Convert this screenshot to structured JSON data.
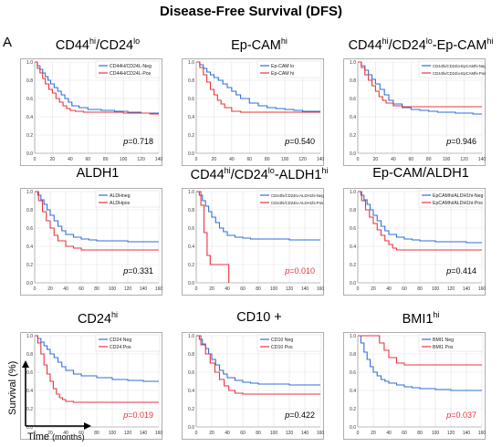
{
  "title": "Disease-Free Survival (DFS)",
  "panel_letter": "A",
  "y_axis_label": "Survival (%)",
  "x_axis_label": "Time",
  "x_axis_unit": "(months)",
  "colors": {
    "neg": "#2e6fd8",
    "pos": "#e8343d",
    "sig": "#e8343d",
    "frame": "#9a9a9a",
    "grid": "#e2e2e2"
  },
  "panels": [
    {
      "title_parts": [
        [
          "CD44",
          "hi",
          "/CD24",
          "lo"
        ]
      ],
      "title": "CD44hi/CD24lo"
    },
    {
      "title": "Ep-CAMhi"
    },
    {
      "title": "CD44hi/CD24lo-Ep-CAMhi"
    },
    {
      "title": "ALDH1"
    },
    {
      "title": "CD44hi/CD24lo-ALDH1hi"
    },
    {
      "title": "Ep-CAM/ALDH1"
    },
    {
      "title": "CD24hi"
    },
    {
      "title": "CD10 +"
    },
    {
      "title": "BMI1hi"
    }
  ],
  "chart_data": [
    {
      "type": "line",
      "title": "CD44hi/CD24lo",
      "xlim": [
        0,
        140
      ],
      "ylim": [
        0,
        1
      ],
      "xticks": [
        0,
        20,
        40,
        60,
        80,
        100,
        120,
        140
      ],
      "yticks": [
        0,
        0.2,
        0.4,
        0.6,
        0.8,
        1.0
      ],
      "p_value": "0.718",
      "significant": false,
      "legend": "top-right",
      "series": [
        {
          "name": "CD44H/CD24L-Neg",
          "x": [
            0,
            3,
            6,
            9,
            12,
            15,
            18,
            22,
            26,
            30,
            34,
            38,
            42,
            50,
            60,
            75,
            90,
            105,
            120,
            130,
            140
          ],
          "values": [
            1.0,
            0.96,
            0.92,
            0.88,
            0.84,
            0.8,
            0.76,
            0.72,
            0.68,
            0.64,
            0.6,
            0.56,
            0.52,
            0.5,
            0.48,
            0.47,
            0.46,
            0.45,
            0.44,
            0.44,
            0.44
          ]
        },
        {
          "name": "CD44H/CD24L-Pos",
          "x": [
            0,
            3,
            6,
            9,
            12,
            16,
            20,
            24,
            28,
            32,
            36,
            40,
            46,
            55,
            70,
            85,
            100,
            115,
            130,
            140
          ],
          "values": [
            1.0,
            0.93,
            0.88,
            0.82,
            0.76,
            0.7,
            0.66,
            0.6,
            0.56,
            0.52,
            0.49,
            0.47,
            0.46,
            0.45,
            0.45,
            0.45,
            0.44,
            0.44,
            0.43,
            0.43
          ]
        }
      ]
    },
    {
      "type": "line",
      "title": "Ep-CAMhi",
      "xlim": [
        0,
        140
      ],
      "ylim": [
        0,
        1
      ],
      "xticks": [
        0,
        20,
        40,
        60,
        80,
        100,
        120,
        140
      ],
      "yticks": [
        0,
        0.2,
        0.4,
        0.6,
        0.8,
        1.0
      ],
      "p_value": "0.540",
      "significant": false,
      "legend": "top-right",
      "series": [
        {
          "name": "Ep-CAM lo",
          "x": [
            0,
            4,
            8,
            12,
            16,
            20,
            25,
            30,
            35,
            40,
            45,
            50,
            60,
            70,
            80,
            90,
            100,
            110,
            120,
            130,
            140
          ],
          "values": [
            1.0,
            0.97,
            0.93,
            0.89,
            0.86,
            0.83,
            0.8,
            0.76,
            0.72,
            0.68,
            0.64,
            0.6,
            0.55,
            0.52,
            0.5,
            0.49,
            0.48,
            0.47,
            0.46,
            0.46,
            0.46
          ]
        },
        {
          "name": "Ep-CAM hi",
          "x": [
            0,
            4,
            8,
            12,
            16,
            20,
            24,
            28,
            32,
            40,
            50,
            70,
            90,
            110,
            130,
            140
          ],
          "values": [
            1.0,
            0.94,
            0.86,
            0.78,
            0.7,
            0.64,
            0.58,
            0.54,
            0.5,
            0.46,
            0.45,
            0.45,
            0.45,
            0.45,
            0.45,
            0.45
          ]
        }
      ]
    },
    {
      "type": "line",
      "title": "CD44hi/CD24lo-Ep-CAMhi",
      "xlim": [
        0,
        140
      ],
      "ylim": [
        0,
        1
      ],
      "xticks": [
        0,
        20,
        40,
        60,
        80,
        100,
        120,
        140
      ],
      "yticks": [
        0,
        0.2,
        0.4,
        0.6,
        0.8,
        1.0
      ],
      "p_value": "0.946",
      "significant": false,
      "legend": "top-right",
      "series": [
        {
          "name": "CD44hi/CD24lo-EpCAMhi-Neg",
          "x": [
            0,
            4,
            8,
            12,
            16,
            20,
            25,
            30,
            35,
            40,
            50,
            60,
            70,
            80,
            90,
            100,
            110,
            120,
            130,
            140
          ],
          "values": [
            1.0,
            0.96,
            0.91,
            0.86,
            0.81,
            0.76,
            0.7,
            0.64,
            0.58,
            0.54,
            0.5,
            0.48,
            0.47,
            0.46,
            0.45,
            0.45,
            0.44,
            0.44,
            0.43,
            0.43
          ]
        },
        {
          "name": "CD44hi/CD24lo-EpCAMhi-Pos",
          "x": [
            0,
            4,
            8,
            12,
            16,
            20,
            24,
            28,
            32,
            40,
            50,
            60,
            80,
            100,
            120,
            140
          ],
          "values": [
            1.0,
            0.94,
            0.86,
            0.8,
            0.74,
            0.68,
            0.62,
            0.58,
            0.55,
            0.52,
            0.51,
            0.51,
            0.51,
            0.51,
            0.51,
            0.51
          ]
        }
      ]
    },
    {
      "type": "line",
      "title": "ALDH1",
      "xlim": [
        0,
        160
      ],
      "ylim": [
        0,
        1
      ],
      "xticks": [
        0,
        20,
        40,
        60,
        80,
        100,
        120,
        140,
        160
      ],
      "yticks": [
        0,
        0.2,
        0.4,
        0.6,
        0.8,
        1.0
      ],
      "p_value": "0.331",
      "significant": false,
      "legend": "top-right",
      "series": [
        {
          "name": "ALDHneg",
          "x": [
            0,
            4,
            8,
            12,
            16,
            20,
            25,
            30,
            35,
            40,
            50,
            60,
            70,
            80,
            100,
            120,
            140,
            160
          ],
          "values": [
            1.0,
            0.96,
            0.91,
            0.86,
            0.8,
            0.74,
            0.68,
            0.62,
            0.57,
            0.53,
            0.5,
            0.48,
            0.47,
            0.46,
            0.46,
            0.45,
            0.45,
            0.45
          ]
        },
        {
          "name": "ALDHpos",
          "x": [
            0,
            5,
            10,
            15,
            20,
            25,
            30,
            40,
            50,
            60,
            80,
            100,
            120,
            140,
            160
          ],
          "values": [
            1.0,
            0.9,
            0.78,
            0.68,
            0.6,
            0.52,
            0.46,
            0.4,
            0.38,
            0.36,
            0.36,
            0.36,
            0.36,
            0.36,
            0.36
          ]
        }
      ]
    },
    {
      "type": "line",
      "title": "CD44hi/CD24lo-ALDH1hi",
      "xlim": [
        0,
        160
      ],
      "ylim": [
        0,
        1
      ],
      "xticks": [
        0,
        20,
        40,
        60,
        80,
        100,
        120,
        140,
        160
      ],
      "yticks": [
        0,
        0.2,
        0.4,
        0.6,
        0.8,
        1.0
      ],
      "p_value": "0.010",
      "significant": true,
      "legend": "top-right",
      "series": [
        {
          "name": "CD44hi/CD24lo-ALDH1hi-Neg",
          "x": [
            0,
            4,
            8,
            12,
            16,
            20,
            25,
            30,
            35,
            40,
            50,
            60,
            70,
            80,
            100,
            120,
            140,
            160
          ],
          "values": [
            1.0,
            0.96,
            0.9,
            0.84,
            0.78,
            0.72,
            0.66,
            0.6,
            0.56,
            0.52,
            0.5,
            0.49,
            0.48,
            0.48,
            0.48,
            0.47,
            0.47,
            0.47
          ]
        },
        {
          "name": "CD44hi/CD24lo-ALDH1hi-Pos",
          "x": [
            0,
            6,
            10,
            14,
            18,
            30,
            38,
            42,
            42
          ],
          "values": [
            1.0,
            0.85,
            0.55,
            0.3,
            0.2,
            0.2,
            0.2,
            0.2,
            0.0
          ]
        }
      ]
    },
    {
      "type": "line",
      "title": "Ep-CAM/ALDH1",
      "xlim": [
        0,
        160
      ],
      "ylim": [
        0,
        1
      ],
      "xticks": [
        0,
        20,
        40,
        60,
        80,
        100,
        120,
        140,
        160
      ],
      "yticks": [
        0,
        0.2,
        0.4,
        0.6,
        0.8,
        1.0
      ],
      "p_value": "0.414",
      "significant": false,
      "legend": "top-right",
      "series": [
        {
          "name": "EpCAMhi/ALDH1hi-Neg",
          "x": [
            0,
            4,
            8,
            12,
            16,
            20,
            25,
            30,
            35,
            40,
            50,
            60,
            70,
            80,
            100,
            120,
            140,
            160
          ],
          "values": [
            1.0,
            0.96,
            0.91,
            0.86,
            0.8,
            0.74,
            0.68,
            0.62,
            0.57,
            0.53,
            0.5,
            0.48,
            0.47,
            0.46,
            0.45,
            0.45,
            0.44,
            0.44
          ]
        },
        {
          "name": "EpCAMhi/ALDH1hi-Pos",
          "x": [
            0,
            5,
            10,
            15,
            20,
            25,
            30,
            35,
            40,
            45,
            50,
            60,
            80,
            100,
            120,
            140,
            160
          ],
          "values": [
            1.0,
            0.9,
            0.8,
            0.72,
            0.65,
            0.58,
            0.52,
            0.46,
            0.42,
            0.38,
            0.36,
            0.36,
            0.36,
            0.36,
            0.36,
            0.36,
            0.36
          ]
        }
      ]
    },
    {
      "type": "line",
      "title": "CD24hi",
      "xlim": [
        0,
        160
      ],
      "ylim": [
        0,
        1
      ],
      "xticks": [
        0,
        20,
        40,
        60,
        80,
        100,
        120,
        140,
        160
      ],
      "yticks": [
        0,
        0.2,
        0.4,
        0.6,
        0.8,
        1.0
      ],
      "p_value": "0.019",
      "significant": true,
      "legend": "top-right",
      "series": [
        {
          "name": "CD24 Neg",
          "x": [
            0,
            4,
            8,
            12,
            16,
            20,
            25,
            30,
            35,
            40,
            50,
            60,
            80,
            100,
            120,
            140,
            160
          ],
          "values": [
            1.0,
            0.97,
            0.93,
            0.89,
            0.85,
            0.8,
            0.76,
            0.71,
            0.66,
            0.62,
            0.58,
            0.56,
            0.54,
            0.52,
            0.51,
            0.5,
            0.5
          ]
        },
        {
          "name": "CD24 Pos",
          "x": [
            0,
            4,
            8,
            12,
            16,
            20,
            24,
            28,
            32,
            36,
            40,
            50,
            60,
            80,
            100,
            120,
            140,
            160
          ],
          "values": [
            1.0,
            0.92,
            0.8,
            0.68,
            0.58,
            0.5,
            0.42,
            0.36,
            0.32,
            0.3,
            0.28,
            0.27,
            0.27,
            0.27,
            0.27,
            0.27,
            0.27,
            0.27
          ]
        }
      ]
    },
    {
      "type": "line",
      "title": "CD10 +",
      "xlim": [
        0,
        160
      ],
      "ylim": [
        0,
        1
      ],
      "xticks": [
        0,
        20,
        40,
        60,
        80,
        100,
        120,
        140,
        160
      ],
      "yticks": [
        0,
        0.2,
        0.4,
        0.6,
        0.8,
        1.0
      ],
      "p_value": "0.422",
      "significant": false,
      "legend": "top-right",
      "series": [
        {
          "name": "CD10 Neg",
          "x": [
            0,
            4,
            8,
            12,
            16,
            20,
            25,
            30,
            35,
            40,
            50,
            60,
            70,
            80,
            100,
            120,
            140,
            160
          ],
          "values": [
            1.0,
            0.96,
            0.91,
            0.86,
            0.8,
            0.74,
            0.68,
            0.62,
            0.58,
            0.54,
            0.51,
            0.49,
            0.48,
            0.47,
            0.47,
            0.46,
            0.46,
            0.46
          ]
        },
        {
          "name": "CD10 Pos",
          "x": [
            0,
            6,
            12,
            18,
            24,
            30,
            36,
            42,
            50,
            60,
            80,
            100,
            120,
            140,
            160
          ],
          "values": [
            1.0,
            0.9,
            0.8,
            0.7,
            0.6,
            0.52,
            0.45,
            0.4,
            0.37,
            0.36,
            0.36,
            0.36,
            0.36,
            0.36,
            0.36
          ]
        }
      ]
    },
    {
      "type": "line",
      "title": "BMI1hi",
      "xlim": [
        0,
        160
      ],
      "ylim": [
        0,
        1
      ],
      "xticks": [
        0,
        20,
        40,
        60,
        80,
        100,
        120,
        140,
        160
      ],
      "yticks": [
        0,
        0.2,
        0.4,
        0.6,
        0.8,
        1.0
      ],
      "p_value": "0.037",
      "significant": true,
      "legend": "top-right",
      "series": [
        {
          "name": "BMI1 Neg",
          "x": [
            0,
            4,
            8,
            12,
            16,
            20,
            25,
            30,
            35,
            40,
            50,
            60,
            70,
            80,
            100,
            120,
            140,
            160
          ],
          "values": [
            1.0,
            0.92,
            0.82,
            0.74,
            0.66,
            0.6,
            0.56,
            0.52,
            0.5,
            0.48,
            0.46,
            0.44,
            0.43,
            0.42,
            0.41,
            0.4,
            0.4,
            0.4
          ]
        },
        {
          "name": "BMI1 Pos",
          "x": [
            0,
            10,
            20,
            28,
            34,
            40,
            50,
            60,
            80,
            100,
            120,
            140,
            160
          ],
          "values": [
            1.0,
            1.0,
            1.0,
            0.92,
            0.84,
            0.76,
            0.7,
            0.68,
            0.68,
            0.68,
            0.68,
            0.68,
            0.68
          ]
        }
      ]
    }
  ]
}
